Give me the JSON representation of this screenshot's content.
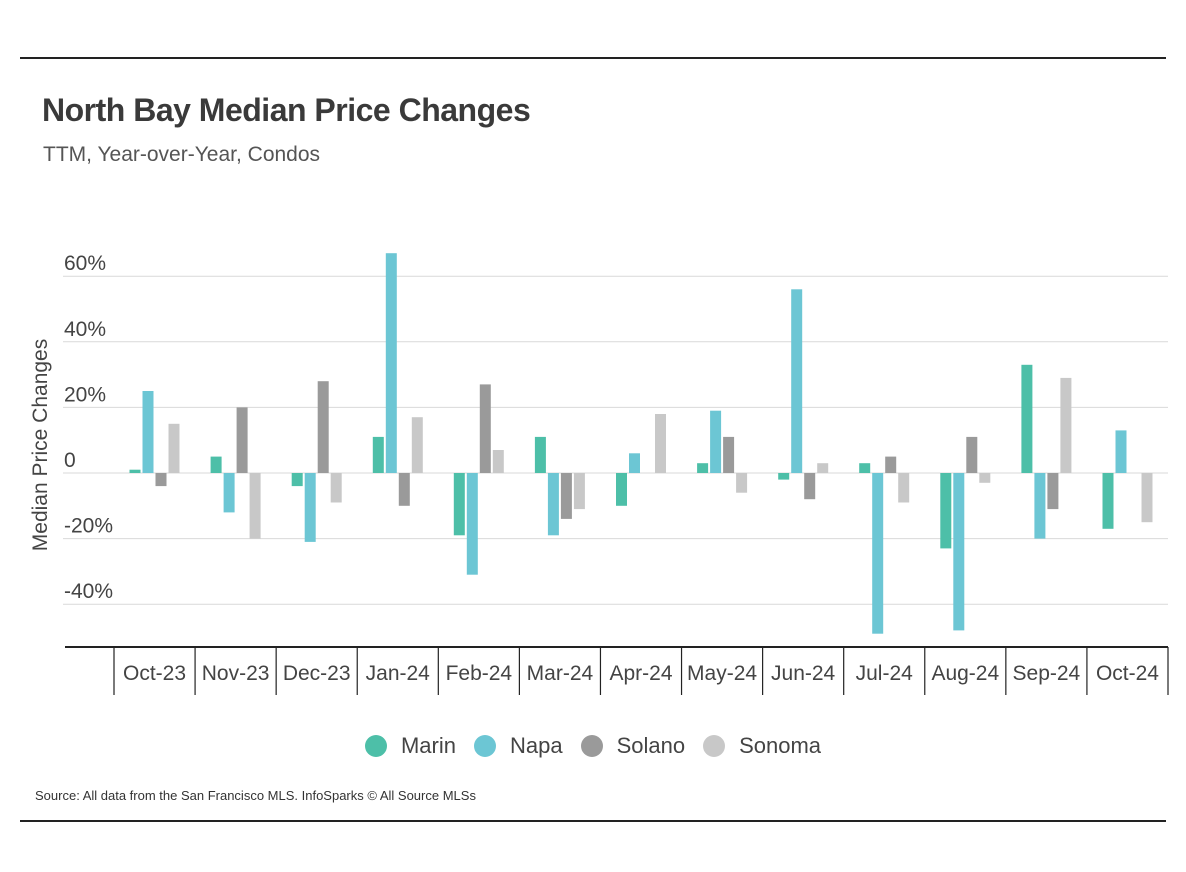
{
  "header": {
    "title": "North Bay Median Price Changes",
    "subtitle": "TTM, Year-over-Year, Condos"
  },
  "footer": {
    "source": "Source:  All data from the San Francisco MLS. InfoSparks © All Source MLSs"
  },
  "colors": {
    "Marin": "#4dbfa8",
    "Napa": "#6cc6d4",
    "Solano": "#9a9a9a",
    "Sonoma": "#c8c8c8",
    "grid": "#d9d9d9",
    "axis": "#222222"
  },
  "chart_data": {
    "type": "bar",
    "title": "North Bay Median Price Changes",
    "subtitle": "TTM, Year-over-Year, Condos",
    "xlabel": "",
    "ylabel": "Median Price Changes",
    "ylim": [
      -53,
      68
    ],
    "yticks": [
      60,
      40,
      20,
      0,
      -20,
      -40
    ],
    "ytick_labels": [
      "60%",
      "40%",
      "20%",
      "0",
      "-20%",
      "-40%"
    ],
    "grid": true,
    "legend": "bottom-center",
    "categories": [
      "Oct-23",
      "Nov-23",
      "Dec-23",
      "Jan-24",
      "Feb-24",
      "Mar-24",
      "Apr-24",
      "May-24",
      "Jun-24",
      "Jul-24",
      "Aug-24",
      "Sep-24",
      "Oct-24"
    ],
    "series": [
      {
        "name": "Marin",
        "values": [
          1,
          5,
          -4,
          11,
          -19,
          11,
          -10,
          3,
          -2,
          3,
          -23,
          33,
          -17
        ]
      },
      {
        "name": "Napa",
        "values": [
          25,
          -12,
          -21,
          67,
          -31,
          -19,
          6,
          19,
          56,
          -49,
          -48,
          -20,
          13
        ]
      },
      {
        "name": "Solano",
        "values": [
          -4,
          20,
          28,
          -10,
          27,
          -14,
          0,
          11,
          -8,
          5,
          11,
          -11,
          0
        ]
      },
      {
        "name": "Sonoma",
        "values": [
          15,
          -20,
          -9,
          17,
          7,
          -11,
          18,
          -6,
          3,
          -9,
          -3,
          29,
          -15
        ]
      }
    ]
  }
}
